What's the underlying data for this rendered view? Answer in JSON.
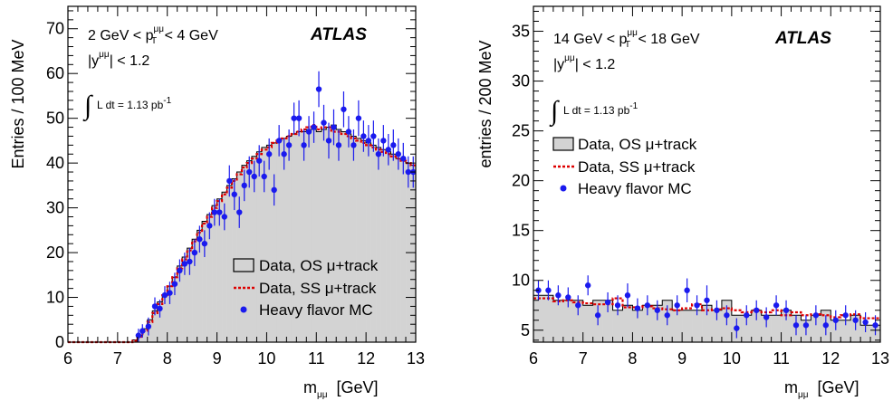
{
  "colors": {
    "fill": "#d3d3d3",
    "ss": "#dd0000",
    "mc": "#1a1aee",
    "axis": "#000000"
  },
  "chart_data": [
    {
      "type": "histogram",
      "xlabel": {
        "main": "m",
        "sub": "μμ",
        "unit": "[GeV]"
      },
      "ylabel": "Entries / 100 MeV",
      "xlim": [
        6,
        13
      ],
      "ylim": [
        0,
        75
      ],
      "xticks": [
        6,
        7,
        8,
        9,
        10,
        11,
        12,
        13
      ],
      "yticks": [
        0,
        10,
        20,
        30,
        40,
        50,
        60,
        70
      ],
      "annotations": {
        "pt_a": "2 GeV < p",
        "pt_sup": "μμ",
        "pt_sub": "T",
        "pt_b": " < 4 GeV",
        "y_a": "|y",
        "y_sup": "μμ",
        "y_b": "| < 1.2",
        "lumi": "L dt = 1.13 pb",
        "lumi_sup": "-1",
        "brand": "ATLAS"
      },
      "legend": {
        "position": "bottom-right",
        "items": [
          "Data, OS μ+track",
          "Data, SS μ+track",
          "Heavy flavor MC"
        ]
      },
      "os": {
        "x_start": 6.0,
        "bin_width": 0.1,
        "values": [
          0,
          0,
          0,
          0,
          0,
          0,
          0,
          0,
          0,
          0,
          0,
          0,
          0,
          0.5,
          1.5,
          3,
          5,
          7,
          9,
          10.5,
          12.5,
          14.5,
          17,
          19,
          21,
          23,
          25,
          27,
          28.5,
          30.5,
          32,
          33.5,
          35,
          36.5,
          38,
          39.5,
          40.5,
          41.5,
          42.5,
          43.5,
          44,
          44.5,
          45,
          45.5,
          46,
          46.5,
          47,
          47,
          47.5,
          47.5,
          47,
          47.5,
          48,
          48.5,
          47.5,
          47,
          46.5,
          46,
          45.5,
          45,
          44.5,
          44,
          43.5,
          43,
          42.5,
          42,
          41,
          40.5,
          40,
          39.5
        ]
      },
      "ss": {
        "x_start": 6.0,
        "bin_width": 0.1,
        "values": [
          0,
          0,
          0,
          0,
          0,
          0,
          0,
          0,
          0,
          0,
          0,
          0,
          0,
          0.3,
          1.2,
          2.5,
          4.5,
          6.5,
          8.5,
          10.5,
          12.5,
          14.5,
          16.5,
          18.5,
          20.5,
          22.5,
          24.5,
          26.5,
          28,
          30,
          31.5,
          33,
          34.5,
          36,
          37.5,
          39,
          40,
          41,
          42,
          43,
          43.5,
          44.5,
          45,
          45.5,
          46,
          46.5,
          47,
          47.5,
          48,
          48.5,
          47.5,
          48,
          48,
          47,
          47,
          46.5,
          46,
          45.5,
          45,
          44.5,
          44,
          43.5,
          43,
          42.5,
          42,
          41.5,
          41,
          40.5,
          40,
          39.5
        ]
      },
      "mc": [
        {
          "x": 7.42,
          "y": 1.5,
          "e": 1.5
        },
        {
          "x": 7.5,
          "y": 2.5,
          "e": 1.5
        },
        {
          "x": 7.62,
          "y": 3.5,
          "e": 2
        },
        {
          "x": 7.75,
          "y": 8,
          "e": 2
        },
        {
          "x": 7.85,
          "y": 7.5,
          "e": 2
        },
        {
          "x": 7.95,
          "y": 10.5,
          "e": 2
        },
        {
          "x": 8.05,
          "y": 11,
          "e": 2.5
        },
        {
          "x": 8.15,
          "y": 13,
          "e": 2.5
        },
        {
          "x": 8.25,
          "y": 16,
          "e": 2.5
        },
        {
          "x": 8.35,
          "y": 17.5,
          "e": 2.5
        },
        {
          "x": 8.45,
          "y": 18,
          "e": 3
        },
        {
          "x": 8.55,
          "y": 20,
          "e": 3
        },
        {
          "x": 8.65,
          "y": 23,
          "e": 3
        },
        {
          "x": 8.75,
          "y": 22,
          "e": 3
        },
        {
          "x": 8.85,
          "y": 26,
          "e": 3
        },
        {
          "x": 8.95,
          "y": 29,
          "e": 3
        },
        {
          "x": 9.05,
          "y": 29,
          "e": 3
        },
        {
          "x": 9.15,
          "y": 28,
          "e": 3
        },
        {
          "x": 9.25,
          "y": 36,
          "e": 3.5
        },
        {
          "x": 9.35,
          "y": 33,
          "e": 3.5
        },
        {
          "x": 9.45,
          "y": 29,
          "e": 3.5
        },
        {
          "x": 9.55,
          "y": 35,
          "e": 3.5
        },
        {
          "x": 9.65,
          "y": 38,
          "e": 3.5
        },
        {
          "x": 9.75,
          "y": 37,
          "e": 3.5
        },
        {
          "x": 9.85,
          "y": 40.5,
          "e": 3.5
        },
        {
          "x": 9.95,
          "y": 37,
          "e": 3.5
        },
        {
          "x": 10.05,
          "y": 42,
          "e": 3.5
        },
        {
          "x": 10.15,
          "y": 34,
          "e": 3.5
        },
        {
          "x": 10.25,
          "y": 45,
          "e": 3.5
        },
        {
          "x": 10.35,
          "y": 42,
          "e": 3.5
        },
        {
          "x": 10.45,
          "y": 44,
          "e": 3.5
        },
        {
          "x": 10.55,
          "y": 50,
          "e": 3.5
        },
        {
          "x": 10.65,
          "y": 50,
          "e": 4
        },
        {
          "x": 10.75,
          "y": 44,
          "e": 3.5
        },
        {
          "x": 10.85,
          "y": 47,
          "e": 3.5
        },
        {
          "x": 10.95,
          "y": 48,
          "e": 3.5
        },
        {
          "x": 11.05,
          "y": 56.5,
          "e": 4
        },
        {
          "x": 11.15,
          "y": 49,
          "e": 4
        },
        {
          "x": 11.25,
          "y": 45,
          "e": 4
        },
        {
          "x": 11.35,
          "y": 48,
          "e": 4
        },
        {
          "x": 11.45,
          "y": 44,
          "e": 3.5
        },
        {
          "x": 11.55,
          "y": 52,
          "e": 4
        },
        {
          "x": 11.65,
          "y": 47,
          "e": 3.5
        },
        {
          "x": 11.75,
          "y": 44,
          "e": 3.5
        },
        {
          "x": 11.85,
          "y": 50,
          "e": 4
        },
        {
          "x": 11.95,
          "y": 46,
          "e": 3.5
        },
        {
          "x": 12.05,
          "y": 45,
          "e": 3.5
        },
        {
          "x": 12.15,
          "y": 46,
          "e": 3.5
        },
        {
          "x": 12.25,
          "y": 42,
          "e": 3.5
        },
        {
          "x": 12.35,
          "y": 45,
          "e": 3.5
        },
        {
          "x": 12.45,
          "y": 43,
          "e": 3.5
        },
        {
          "x": 12.55,
          "y": 44,
          "e": 3.5
        },
        {
          "x": 12.65,
          "y": 42,
          "e": 3.5
        },
        {
          "x": 12.75,
          "y": 41,
          "e": 3.5
        },
        {
          "x": 12.85,
          "y": 38,
          "e": 3.5
        },
        {
          "x": 12.95,
          "y": 38,
          "e": 3.5
        }
      ]
    },
    {
      "type": "histogram",
      "xlabel": {
        "main": "m",
        "sub": "μμ",
        "unit": "[GeV]"
      },
      "ylabel": "entries / 200 MeV",
      "xlim": [
        6,
        13
      ],
      "ylim": [
        3.8,
        37.5
      ],
      "xticks": [
        6,
        7,
        8,
        9,
        10,
        11,
        12,
        13
      ],
      "yticks": [
        5,
        10,
        15,
        20,
        25,
        30,
        35
      ],
      "annotations": {
        "pt_a": "14 GeV < p",
        "pt_sup": "μμ",
        "pt_sub": "T",
        "pt_b": " < 18 GeV",
        "y_a": "|y",
        "y_sup": "μμ",
        "y_b": "| < 1.2",
        "lumi": "L dt = 1.13 pb",
        "lumi_sup": "-1",
        "brand": "ATLAS"
      },
      "legend": {
        "position": "top-left",
        "items": [
          "Data, OS μ+track",
          "Data, SS μ+track",
          "Heavy flavor MC"
        ]
      },
      "os": {
        "x_start": 6.0,
        "bin_width": 0.2,
        "values": [
          8.5,
          8.5,
          8,
          8,
          8,
          7.5,
          8,
          8,
          7,
          7.5,
          7,
          7.5,
          7.5,
          8,
          7,
          7,
          7,
          7.5,
          7,
          8,
          6.5,
          6.5,
          7,
          6.5,
          6.5,
          7,
          6.5,
          6,
          6.5,
          7,
          6,
          6,
          6.5,
          5.5,
          5.5
        ]
      },
      "ss": {
        "x_start": 6.0,
        "bin_width": 0.2,
        "values": [
          8.2,
          8.2,
          7.9,
          8,
          7.8,
          7.7,
          7.6,
          7.6,
          8.2,
          7.3,
          7.3,
          7.4,
          7.2,
          7.1,
          7,
          7.2,
          7.6,
          7,
          7.1,
          7.2,
          7,
          6.8,
          7,
          6.8,
          7,
          6.5,
          6.8,
          6.5,
          6.6,
          6.5,
          6.3,
          6.5,
          6.6,
          6.2,
          6.2
        ]
      },
      "mc": [
        {
          "x": 6.1,
          "y": 9,
          "e": 1
        },
        {
          "x": 6.3,
          "y": 9,
          "e": 1
        },
        {
          "x": 6.5,
          "y": 8.5,
          "e": 1
        },
        {
          "x": 6.7,
          "y": 8.3,
          "e": 1
        },
        {
          "x": 6.9,
          "y": 7.5,
          "e": 1
        },
        {
          "x": 7.1,
          "y": 9.5,
          "e": 1
        },
        {
          "x": 7.3,
          "y": 6.5,
          "e": 1
        },
        {
          "x": 7.5,
          "y": 7.8,
          "e": 1
        },
        {
          "x": 7.7,
          "y": 7.5,
          "e": 1
        },
        {
          "x": 7.9,
          "y": 8.5,
          "e": 1.2
        },
        {
          "x": 8.1,
          "y": 7.2,
          "e": 1
        },
        {
          "x": 8.3,
          "y": 7.5,
          "e": 1
        },
        {
          "x": 8.5,
          "y": 7,
          "e": 1
        },
        {
          "x": 8.7,
          "y": 6.5,
          "e": 1
        },
        {
          "x": 8.9,
          "y": 7.5,
          "e": 1
        },
        {
          "x": 9.1,
          "y": 9,
          "e": 1.2
        },
        {
          "x": 9.3,
          "y": 7.5,
          "e": 1
        },
        {
          "x": 9.5,
          "y": 8,
          "e": 1.5
        },
        {
          "x": 9.7,
          "y": 7,
          "e": 1
        },
        {
          "x": 9.9,
          "y": 6.5,
          "e": 1
        },
        {
          "x": 10.1,
          "y": 5.2,
          "e": 1
        },
        {
          "x": 10.3,
          "y": 6.5,
          "e": 1
        },
        {
          "x": 10.5,
          "y": 7,
          "e": 1
        },
        {
          "x": 10.7,
          "y": 6.3,
          "e": 1
        },
        {
          "x": 10.9,
          "y": 7.5,
          "e": 1
        },
        {
          "x": 11.1,
          "y": 7,
          "e": 1
        },
        {
          "x": 11.3,
          "y": 5.5,
          "e": 1
        },
        {
          "x": 11.5,
          "y": 5.5,
          "e": 1
        },
        {
          "x": 11.7,
          "y": 6.5,
          "e": 1
        },
        {
          "x": 11.9,
          "y": 5.5,
          "e": 1
        },
        {
          "x": 12.1,
          "y": 6,
          "e": 1
        },
        {
          "x": 12.3,
          "y": 6.5,
          "e": 1
        },
        {
          "x": 12.5,
          "y": 6,
          "e": 1
        },
        {
          "x": 12.7,
          "y": 5.8,
          "e": 1
        },
        {
          "x": 12.9,
          "y": 5.5,
          "e": 1
        }
      ]
    }
  ]
}
